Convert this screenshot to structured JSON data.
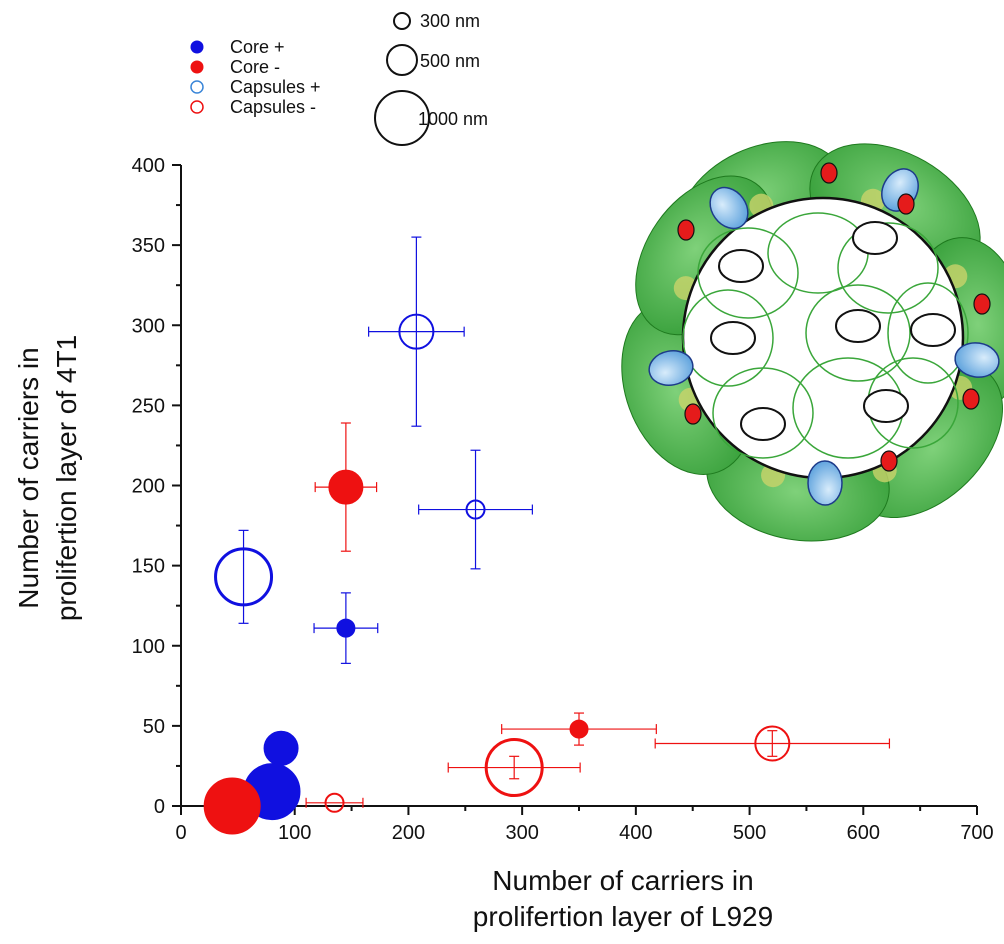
{
  "chart_data": {
    "type": "scatter",
    "xlabel_lines": [
      "Number of carriers in",
      "prolifertion layer of L929"
    ],
    "ylabel_lines": [
      "Number of carriers in",
      "prolifertion layer of 4T1"
    ],
    "xlim": [
      0,
      700
    ],
    "ylim": [
      0,
      400
    ],
    "x_ticks": [
      0,
      100,
      200,
      300,
      400,
      500,
      600,
      700
    ],
    "y_ticks": [
      0,
      50,
      100,
      150,
      200,
      250,
      300,
      350,
      400
    ],
    "colors": {
      "blue": "#1010e0",
      "red": "#ee1111",
      "legend_capsule_blue": "#3a86d8"
    },
    "legend_entries": [
      {
        "label": "Core +",
        "fill": "blue",
        "open": false
      },
      {
        "label": "Core -",
        "fill": "red",
        "open": false
      },
      {
        "label": "Capsules +",
        "fill": "legend_capsule_blue",
        "open": true
      },
      {
        "label": "Capsules -",
        "fill": "red",
        "open": true
      }
    ],
    "size_legend": [
      {
        "label": "300 nm",
        "size_nm": 300
      },
      {
        "label": "500 nm",
        "size_nm": 500
      },
      {
        "label": "1000 nm",
        "size_nm": 1000
      }
    ],
    "series": [
      {
        "name": "Core +",
        "color": "blue",
        "open": false,
        "points": [
          {
            "x": 145,
            "y": 111,
            "xerr": 28,
            "yerr": 22,
            "size_nm": 300
          },
          {
            "x": 88,
            "y": 36,
            "xerr": 10,
            "yerr": 3,
            "size_nm": 500
          },
          {
            "x": 80,
            "y": 9,
            "xerr": 0,
            "yerr": 0,
            "size_nm": 1000
          }
        ]
      },
      {
        "name": "Core -",
        "color": "red",
        "open": false,
        "points": [
          {
            "x": 350,
            "y": 48,
            "xerr": 68,
            "yerr": 10,
            "size_nm": 300
          },
          {
            "x": 145,
            "y": 199,
            "xerr": 27,
            "yerr": 40,
            "size_nm": 500
          },
          {
            "x": 45,
            "y": 0,
            "xerr": 0,
            "yerr": 0,
            "size_nm": 1000
          }
        ]
      },
      {
        "name": "Capsules +",
        "color": "blue",
        "open": true,
        "points": [
          {
            "x": 259,
            "y": 185,
            "xerr": 50,
            "yerr": 37,
            "size_nm": 300
          },
          {
            "x": 207,
            "y": 296,
            "xerr": 42,
            "yerr": 59,
            "size_nm": 500
          },
          {
            "x": 55,
            "y": 143,
            "xerr": 0,
            "yerr": 29,
            "size_nm": 1000
          }
        ]
      },
      {
        "name": "Capsules -",
        "color": "red",
        "open": true,
        "points": [
          {
            "x": 135,
            "y": 2,
            "xerr": 25,
            "yerr": 0,
            "size_nm": 300
          },
          {
            "x": 520,
            "y": 39,
            "xerr": 103,
            "yerr": 8,
            "size_nm": 500
          },
          {
            "x": 293,
            "y": 24,
            "xerr": 58,
            "yerr": 7,
            "size_nm": 1000
          }
        ]
      }
    ]
  },
  "illustration": {
    "name": "tumor-spheroid-diagram",
    "colors": {
      "green": "#3aa63a",
      "green_dark": "#1e7a1e",
      "yellow": "#c9d36a",
      "carrier_blue": "#8fc3ea",
      "carrier_red": "#e51b1b"
    }
  }
}
